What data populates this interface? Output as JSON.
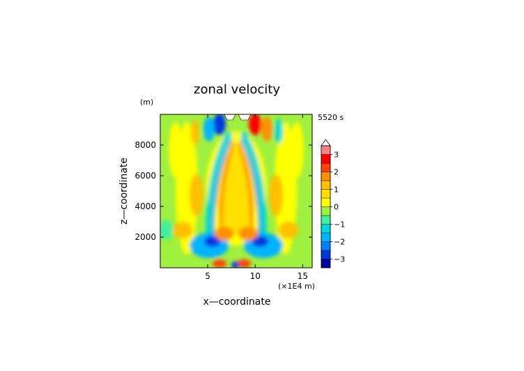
{
  "chart_data": {
    "type": "heatmap",
    "title": "zonal velocity",
    "xlabel": "x—coordinate",
    "ylabel": "z—coordinate",
    "y_unit_label": "(m)",
    "x_unit_label": "(×1E4 m)",
    "time_label": "5520 s",
    "xlim": [
      0,
      16
    ],
    "ylim": [
      0,
      10000
    ],
    "x_ticks": [
      {
        "value": 5,
        "label": "5"
      },
      {
        "value": 10,
        "label": "10"
      },
      {
        "value": 15,
        "label": "15"
      }
    ],
    "y_ticks": [
      {
        "value": 2000,
        "label": "2000"
      },
      {
        "value": 4000,
        "label": "4000"
      },
      {
        "value": 6000,
        "label": "6000"
      },
      {
        "value": 8000,
        "label": "8000"
      }
    ],
    "colorbar": {
      "levels": [
        -3.5,
        -3,
        -2.5,
        -2,
        -1.5,
        -1,
        -0.5,
        0,
        0.5,
        1,
        1.5,
        2,
        2.5,
        3,
        3.5
      ],
      "colors": [
        "#0000a0",
        "#0038e0",
        "#0080ff",
        "#00b4ff",
        "#00d8d8",
        "#40f0a0",
        "#a0f040",
        "#ffff00",
        "#ffe000",
        "#ffc000",
        "#ff9000",
        "#ff4000",
        "#ff0000",
        "#ff8080",
        "#ffb8b8"
      ],
      "tick_labels": [
        {
          "value": 3,
          "label": "3"
        },
        {
          "value": 2,
          "label": "2"
        },
        {
          "value": 1,
          "label": "1"
        },
        {
          "value": 0,
          "label": "0"
        },
        {
          "value": -1,
          "label": "−1"
        },
        {
          "value": -2,
          "label": "−2"
        },
        {
          "value": -3,
          "label": "−3"
        }
      ],
      "extend": "max"
    }
  }
}
